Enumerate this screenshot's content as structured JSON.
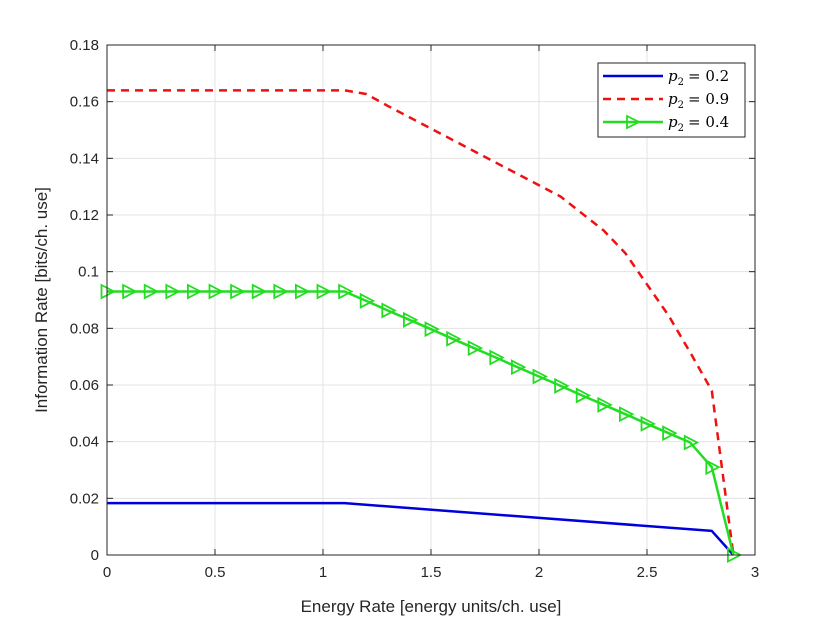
{
  "chart_data": {
    "type": "line",
    "title": "",
    "xlabel": "Energy Rate [energy units/ch. use]",
    "ylabel": "Information Rate [bits/ch. use]",
    "xlim": [
      0,
      3
    ],
    "ylim": [
      0,
      0.18
    ],
    "xticks": [
      0,
      0.5,
      1,
      1.5,
      2,
      2.5,
      3
    ],
    "xtick_labels": [
      "0",
      "0.5",
      "1",
      "1.5",
      "2",
      "2.5",
      "3"
    ],
    "yticks": [
      0,
      0.02,
      0.04,
      0.06,
      0.08,
      0.1,
      0.12,
      0.14,
      0.16,
      0.18
    ],
    "ytick_labels": [
      "0",
      "0.02",
      "0.04",
      "0.06",
      "0.08",
      "0.1",
      "0.12",
      "0.14",
      "0.16",
      "0.18"
    ],
    "grid": true,
    "legend_position": "top-right",
    "series": [
      {
        "name": "p₂ = 0.2",
        "color": "#0000dd",
        "style": "solid",
        "marker": "none",
        "x": [
          0,
          1.1,
          2.8,
          2.9
        ],
        "y": [
          0.0183,
          0.0183,
          0.0085,
          0
        ]
      },
      {
        "name": "p₂ = 0.9",
        "color": "#ee1111",
        "style": "dashed",
        "marker": "none",
        "x": [
          0,
          1.1,
          1.2,
          1.3,
          1.4,
          1.5,
          1.6,
          1.7,
          1.8,
          1.9,
          2.0,
          2.1,
          2.2,
          2.3,
          2.4,
          2.5,
          2.6,
          2.7,
          2.8,
          2.9
        ],
        "y": [
          0.164,
          0.164,
          0.1627,
          0.1585,
          0.1545,
          0.1505,
          0.1465,
          0.1425,
          0.1385,
          0.1345,
          0.1305,
          0.1265,
          0.1205,
          0.1145,
          0.1065,
          0.0955,
          0.0845,
          0.0715,
          0.058,
          0
        ]
      },
      {
        "name": "p₂ = 0.4",
        "color": "#22dd22",
        "style": "solid",
        "marker": "triangle-right",
        "x": [
          0,
          0.1,
          0.2,
          0.3,
          0.4,
          0.5,
          0.6,
          0.7,
          0.8,
          0.9,
          1.0,
          1.1,
          1.2,
          1.3,
          1.4,
          1.5,
          1.6,
          1.7,
          1.8,
          1.9,
          2.0,
          2.1,
          2.2,
          2.3,
          2.4,
          2.5,
          2.6,
          2.7,
          2.8,
          2.9
        ],
        "y": [
          0.093,
          0.093,
          0.093,
          0.093,
          0.093,
          0.093,
          0.093,
          0.093,
          0.093,
          0.093,
          0.093,
          0.093,
          0.0897,
          0.0863,
          0.083,
          0.0797,
          0.0763,
          0.073,
          0.0697,
          0.0663,
          0.063,
          0.0597,
          0.0563,
          0.053,
          0.0497,
          0.0463,
          0.043,
          0.0397,
          0.031,
          0
        ]
      }
    ],
    "legend_entries": [
      {
        "symbol": "p",
        "subscript": "2",
        "relation": "= 0.2"
      },
      {
        "symbol": "p",
        "subscript": "2",
        "relation": "= 0.9"
      },
      {
        "symbol": "p",
        "subscript": "2",
        "relation": "= 0.4"
      }
    ]
  }
}
